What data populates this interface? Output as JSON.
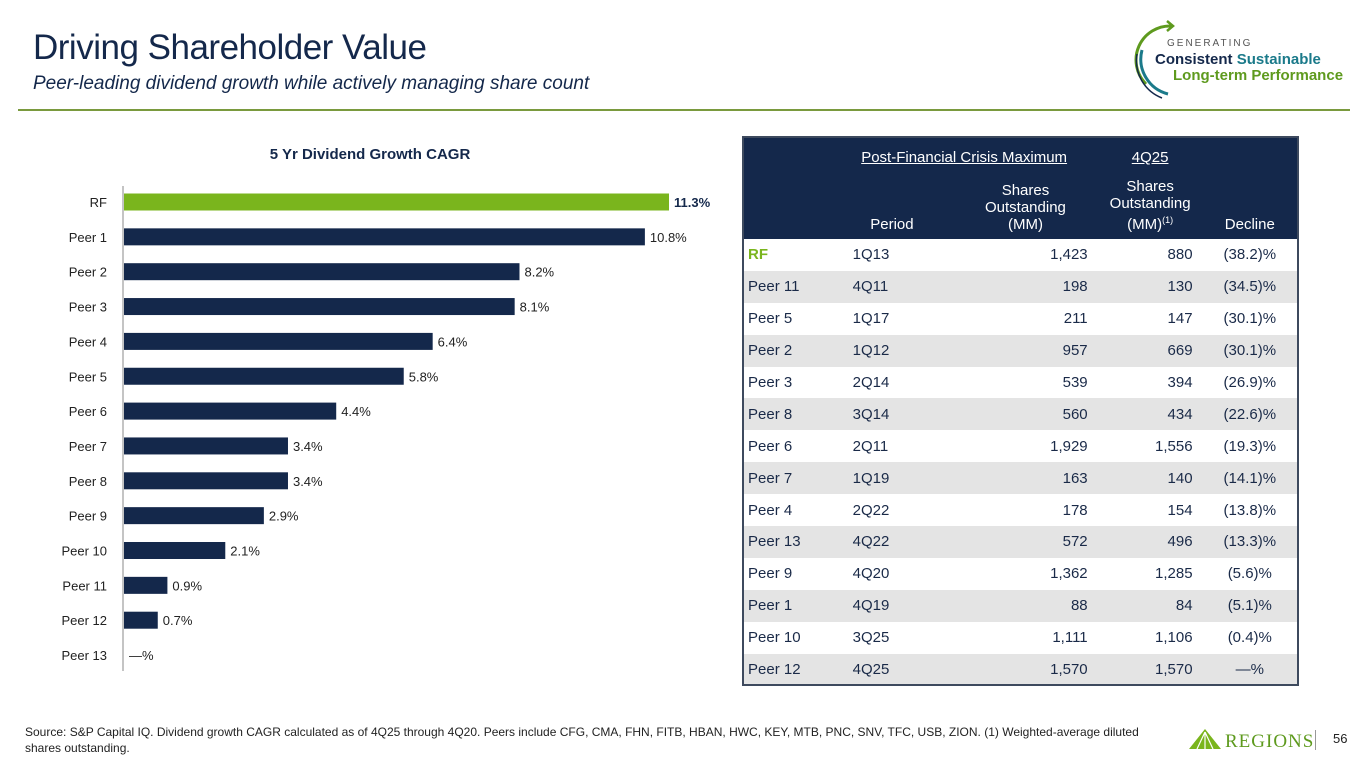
{
  "header": {
    "title": "Driving Shareholder Value",
    "subtitle": "Peer-leading dividend growth while actively managing share count"
  },
  "tagline": {
    "line1": "GENERATING",
    "line2a": "Consistent",
    "line2b": "Sustainable",
    "line3": "Long-term Performance",
    "icon": "circular-arrow-icon"
  },
  "colors": {
    "navy": "#14284b",
    "green": "#7ab51d",
    "row_alt": "#e4e4e4"
  },
  "chart_data": {
    "type": "bar",
    "orientation": "horizontal",
    "title": "5 Yr Dividend Growth CAGR",
    "xlabel": "",
    "ylabel": "",
    "categories": [
      "RF",
      "Peer 1",
      "Peer 2",
      "Peer 3",
      "Peer 4",
      "Peer 5",
      "Peer 6",
      "Peer 7",
      "Peer 8",
      "Peer 9",
      "Peer 10",
      "Peer 11",
      "Peer 12",
      "Peer 13"
    ],
    "values": [
      11.3,
      10.8,
      8.2,
      8.1,
      6.4,
      5.8,
      4.4,
      3.4,
      3.4,
      2.9,
      2.1,
      0.9,
      0.7,
      0
    ],
    "labels": [
      "11.3%",
      "10.8%",
      "8.2%",
      "8.1%",
      "6.4%",
      "5.8%",
      "4.4%",
      "3.4%",
      "3.4%",
      "2.9%",
      "2.1%",
      "0.9%",
      "0.7%",
      "—%"
    ],
    "highlight": "RF",
    "xlim": [
      0,
      12
    ],
    "grid": false,
    "legend": "none"
  },
  "table": {
    "group_headers": {
      "post_crisis": "Post-Financial Crisis Maximum",
      "current": "4Q25"
    },
    "columns": {
      "period": "Period",
      "shares_max": [
        "Shares",
        "Outstanding",
        "(MM)"
      ],
      "shares_now": [
        "Shares",
        "Outstanding",
        "(MM)"
      ],
      "shares_now_sup": "(1)",
      "decline": "Decline"
    },
    "rows": [
      {
        "name": "RF",
        "period": "1Q13",
        "max": "1,423",
        "now": "880",
        "decline": "(38.2)%"
      },
      {
        "name": "Peer 11",
        "period": "4Q11",
        "max": "198",
        "now": "130",
        "decline": "(34.5)%"
      },
      {
        "name": "Peer 5",
        "period": "1Q17",
        "max": "211",
        "now": "147",
        "decline": "(30.1)%"
      },
      {
        "name": "Peer 2",
        "period": "1Q12",
        "max": "957",
        "now": "669",
        "decline": "(30.1)%"
      },
      {
        "name": "Peer 3",
        "period": "2Q14",
        "max": "539",
        "now": "394",
        "decline": "(26.9)%"
      },
      {
        "name": "Peer 8",
        "period": "3Q14",
        "max": "560",
        "now": "434",
        "decline": "(22.6)%"
      },
      {
        "name": "Peer 6",
        "period": "2Q11",
        "max": "1,929",
        "now": "1,556",
        "decline": "(19.3)%"
      },
      {
        "name": "Peer 7",
        "period": "1Q19",
        "max": "163",
        "now": "140",
        "decline": "(14.1)%"
      },
      {
        "name": "Peer 4",
        "period": "2Q22",
        "max": "178",
        "now": "154",
        "decline": "(13.8)%"
      },
      {
        "name": "Peer 13",
        "period": "4Q22",
        "max": "572",
        "now": "496",
        "decline": "(13.3)%"
      },
      {
        "name": "Peer 9",
        "period": "4Q20",
        "max": "1,362",
        "now": "1,285",
        "decline": "(5.6)%"
      },
      {
        "name": "Peer 1",
        "period": "4Q19",
        "max": "88",
        "now": "84",
        "decline": "(5.1)%"
      },
      {
        "name": "Peer 10",
        "period": "3Q25",
        "max": "1,111",
        "now": "1,106",
        "decline": "(0.4)%"
      },
      {
        "name": "Peer 12",
        "period": "4Q25",
        "max": "1,570",
        "now": "1,570",
        "decline": "—%"
      }
    ]
  },
  "footer": {
    "source": "Source: S&P Capital IQ.  Dividend growth CAGR calculated as of 4Q25 through 4Q20. Peers include CFG, CMA, FHN, FITB, HBAN, HWC, KEY, MTB, PNC, SNV, TFC, USB, ZION. (1) Weighted-average diluted shares outstanding.",
    "logo_text": "REGIONS",
    "logo_icon": "regions-pyramid-icon",
    "page_number": "56"
  }
}
